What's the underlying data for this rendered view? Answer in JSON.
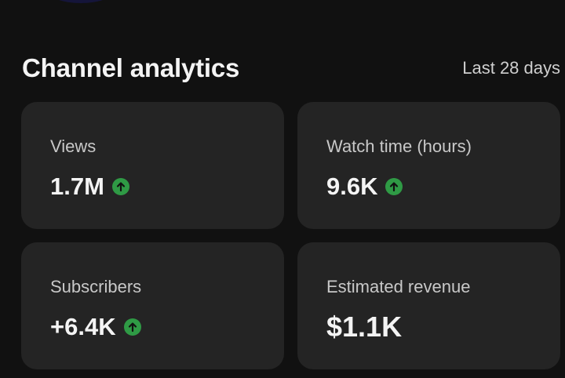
{
  "analytics": {
    "title": "Channel analytics",
    "period": "Last 28 days"
  },
  "metrics": [
    {
      "label": "Views",
      "value": "1.7M",
      "trend": "up",
      "trend_icon": "arrow-up-circle-icon",
      "trend_color": "#2f9a45"
    },
    {
      "label": "Watch time (hours)",
      "value": "9.6K",
      "trend": "up",
      "trend_icon": "arrow-up-circle-icon",
      "trend_color": "#2f9a45"
    },
    {
      "label": "Subscribers",
      "value": "+6.4K",
      "trend": "up",
      "trend_icon": "arrow-up-circle-icon",
      "trend_color": "#2f9a45"
    },
    {
      "label": "Estimated revenue",
      "value": "$1.1K",
      "trend": "none"
    }
  ],
  "colors": {
    "background": "#111111",
    "card": "#242424",
    "accent_up": "#2f9a45"
  }
}
